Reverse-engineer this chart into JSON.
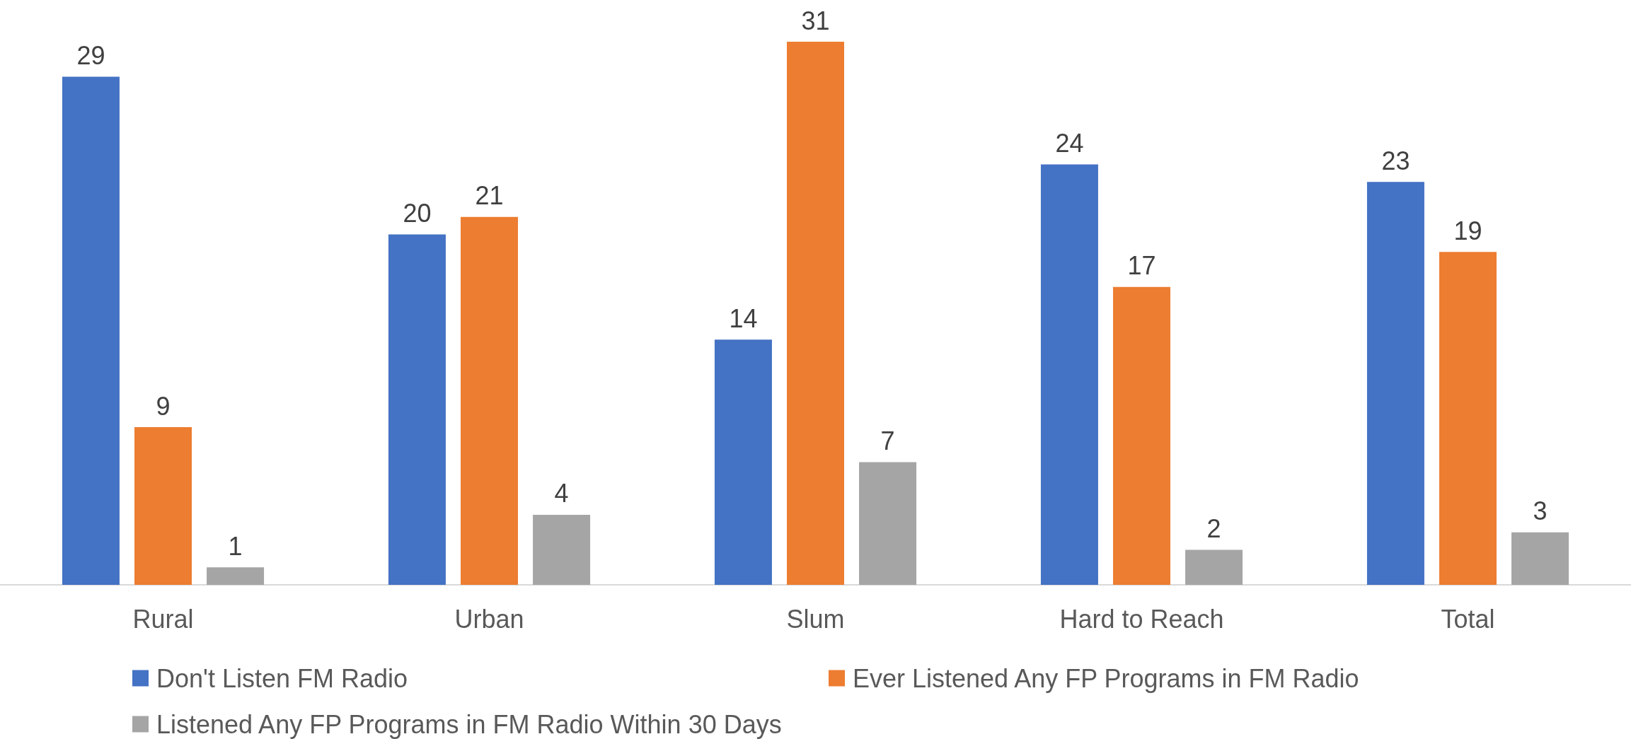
{
  "chart_data": {
    "type": "bar",
    "categories": [
      "Rural",
      "Urban",
      "Slum",
      "Hard to Reach",
      "Total"
    ],
    "series": [
      {
        "name": "Don't Listen FM Radio",
        "color": "#4472c4",
        "values": [
          29,
          20,
          14,
          24,
          23
        ]
      },
      {
        "name": "Ever Listened Any FP Programs in FM Radio",
        "color": "#ed7d31",
        "values": [
          9,
          21,
          31,
          17,
          19
        ]
      },
      {
        "name": "Listened Any FP Programs in FM Radio Within 30 Days",
        "color": "#a5a5a5",
        "values": [
          1,
          4,
          7,
          2,
          3
        ]
      }
    ],
    "data_labels": true,
    "tick_labels": "x",
    "grid": false,
    "legend": "bottom"
  }
}
